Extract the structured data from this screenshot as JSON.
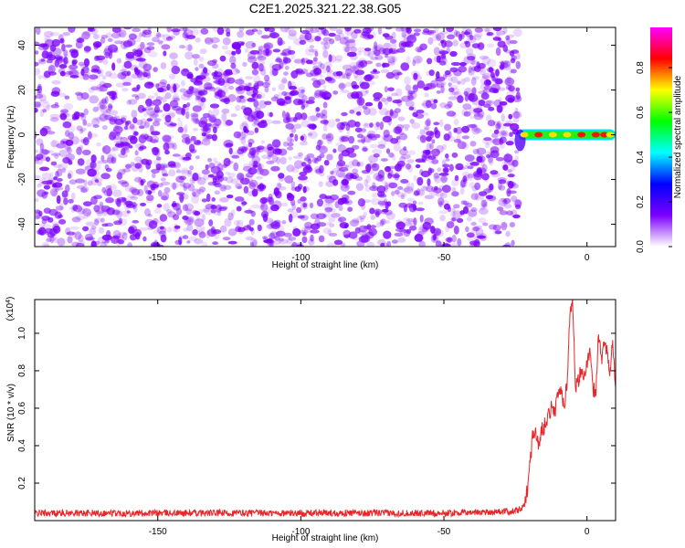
{
  "title": "C2E1.2025.321.22.38.G05",
  "chart_data": [
    {
      "type": "heatmap",
      "title": "C2E1.2025.321.22.38.G05",
      "xlabel": "Height of straight line (km)",
      "ylabel": "Frequency (Hz)",
      "xlim": [
        -193,
        10
      ],
      "ylim": [
        -50,
        48
      ],
      "x_ticks": [
        -150,
        -100,
        -50,
        0
      ],
      "y_ticks": [
        -40,
        -20,
        0,
        20,
        40
      ],
      "noise_region_x": [
        -193,
        -24
      ],
      "signal_track": {
        "frequency_hz": 0,
        "x": [
          -24,
          -20,
          -15,
          -10,
          -5,
          0,
          5,
          8,
          10
        ],
        "amplitude": [
          0.55,
          0.9,
          0.95,
          0.85,
          0.9,
          0.92,
          0.97,
          0.95,
          0.9
        ]
      },
      "colorbar": {
        "label": "Normalized spectral amplitude",
        "range": [
          0.0,
          0.98
        ],
        "ticks": [
          0.0,
          0.2,
          0.4,
          0.6,
          0.8
        ],
        "colors": [
          "#ffffff",
          "#7b00ff",
          "#0000ff",
          "#00ffff",
          "#00ff00",
          "#ffff00",
          "#ff0000",
          "#ff00ff"
        ]
      },
      "colors": {
        "noise": "#7b00ff"
      }
    },
    {
      "type": "line",
      "xlabel": "Height of straight line (km)",
      "ylabel": "SNR (10 * v/v)",
      "y_multiplier": "(x10^4)",
      "xlim": [
        -193,
        10
      ],
      "ylim": [
        0,
        1.18
      ],
      "x_ticks": [
        -150,
        -100,
        -50,
        0
      ],
      "y_ticks": [
        0.2,
        0.4,
        0.6,
        0.8,
        1.0
      ],
      "series": [
        {
          "color": "#e8262a",
          "x": [
            -193,
            -150,
            -100,
            -50,
            -25,
            -22,
            -21,
            -20,
            -19,
            -18,
            -17,
            -16,
            -15,
            -14,
            -13,
            -12,
            -11,
            -10,
            -9,
            -8,
            -7,
            -6,
            -5,
            -4,
            -3,
            -2,
            -1,
            0,
            1,
            2,
            3,
            4,
            5,
            6,
            7,
            8,
            9,
            10
          ],
          "values": [
            0.04,
            0.04,
            0.04,
            0.04,
            0.05,
            0.07,
            0.15,
            0.3,
            0.45,
            0.5,
            0.38,
            0.48,
            0.5,
            0.55,
            0.58,
            0.62,
            0.58,
            0.7,
            0.68,
            0.62,
            0.72,
            1.1,
            1.18,
            0.72,
            0.75,
            0.8,
            0.78,
            0.82,
            0.9,
            0.72,
            0.66,
            1.02,
            0.85,
            0.98,
            0.9,
            0.78,
            0.95,
            0.7
          ]
        }
      ]
    }
  ]
}
